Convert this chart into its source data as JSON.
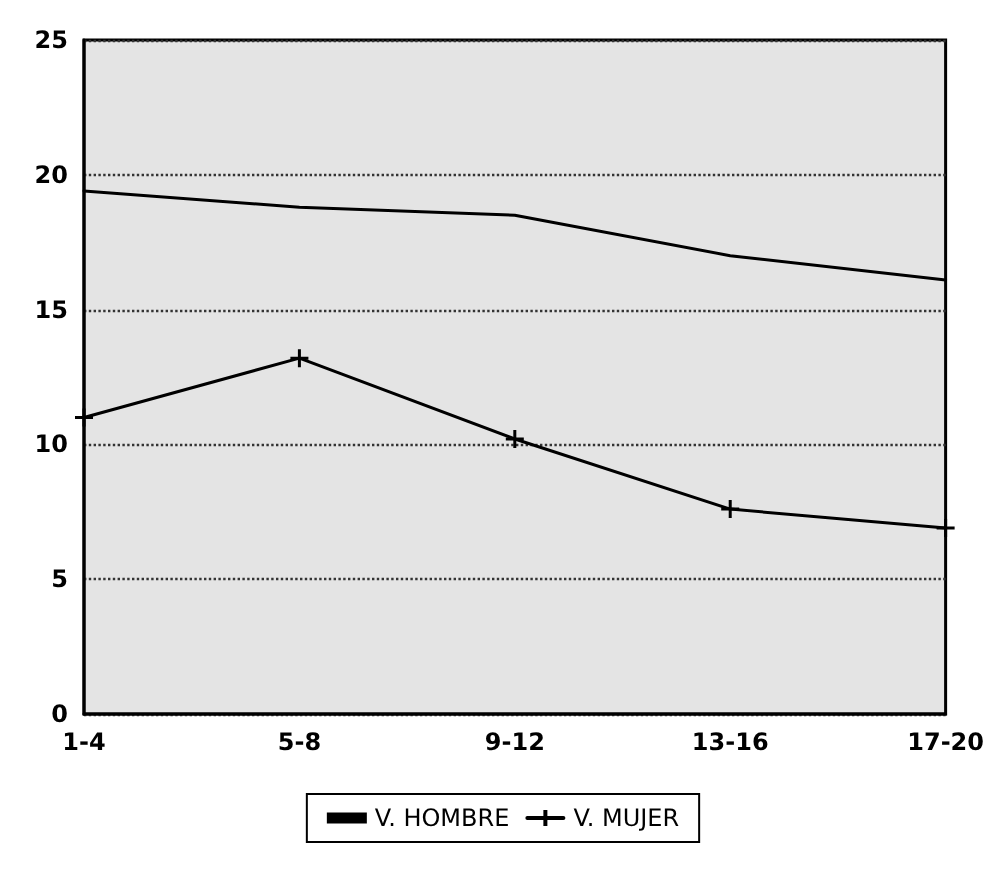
{
  "chart_data": {
    "type": "line",
    "categories": [
      "1-4",
      "5-8",
      "9-12",
      "13-16",
      "17-20"
    ],
    "series": [
      {
        "name": "V. HOMBRE",
        "color": "#000000",
        "marker": "none",
        "values": [
          19.4,
          18.8,
          18.5,
          17.0,
          16.1
        ]
      },
      {
        "name": "V. MUJER",
        "color": "#000000",
        "marker": "cross",
        "values": [
          11.0,
          13.2,
          10.2,
          7.6,
          6.9
        ]
      }
    ],
    "ylim": [
      0,
      25
    ],
    "yticks": [
      0,
      5,
      10,
      15,
      20,
      25
    ],
    "grid": "y",
    "legend": "bottom",
    "line_style": "solid"
  }
}
